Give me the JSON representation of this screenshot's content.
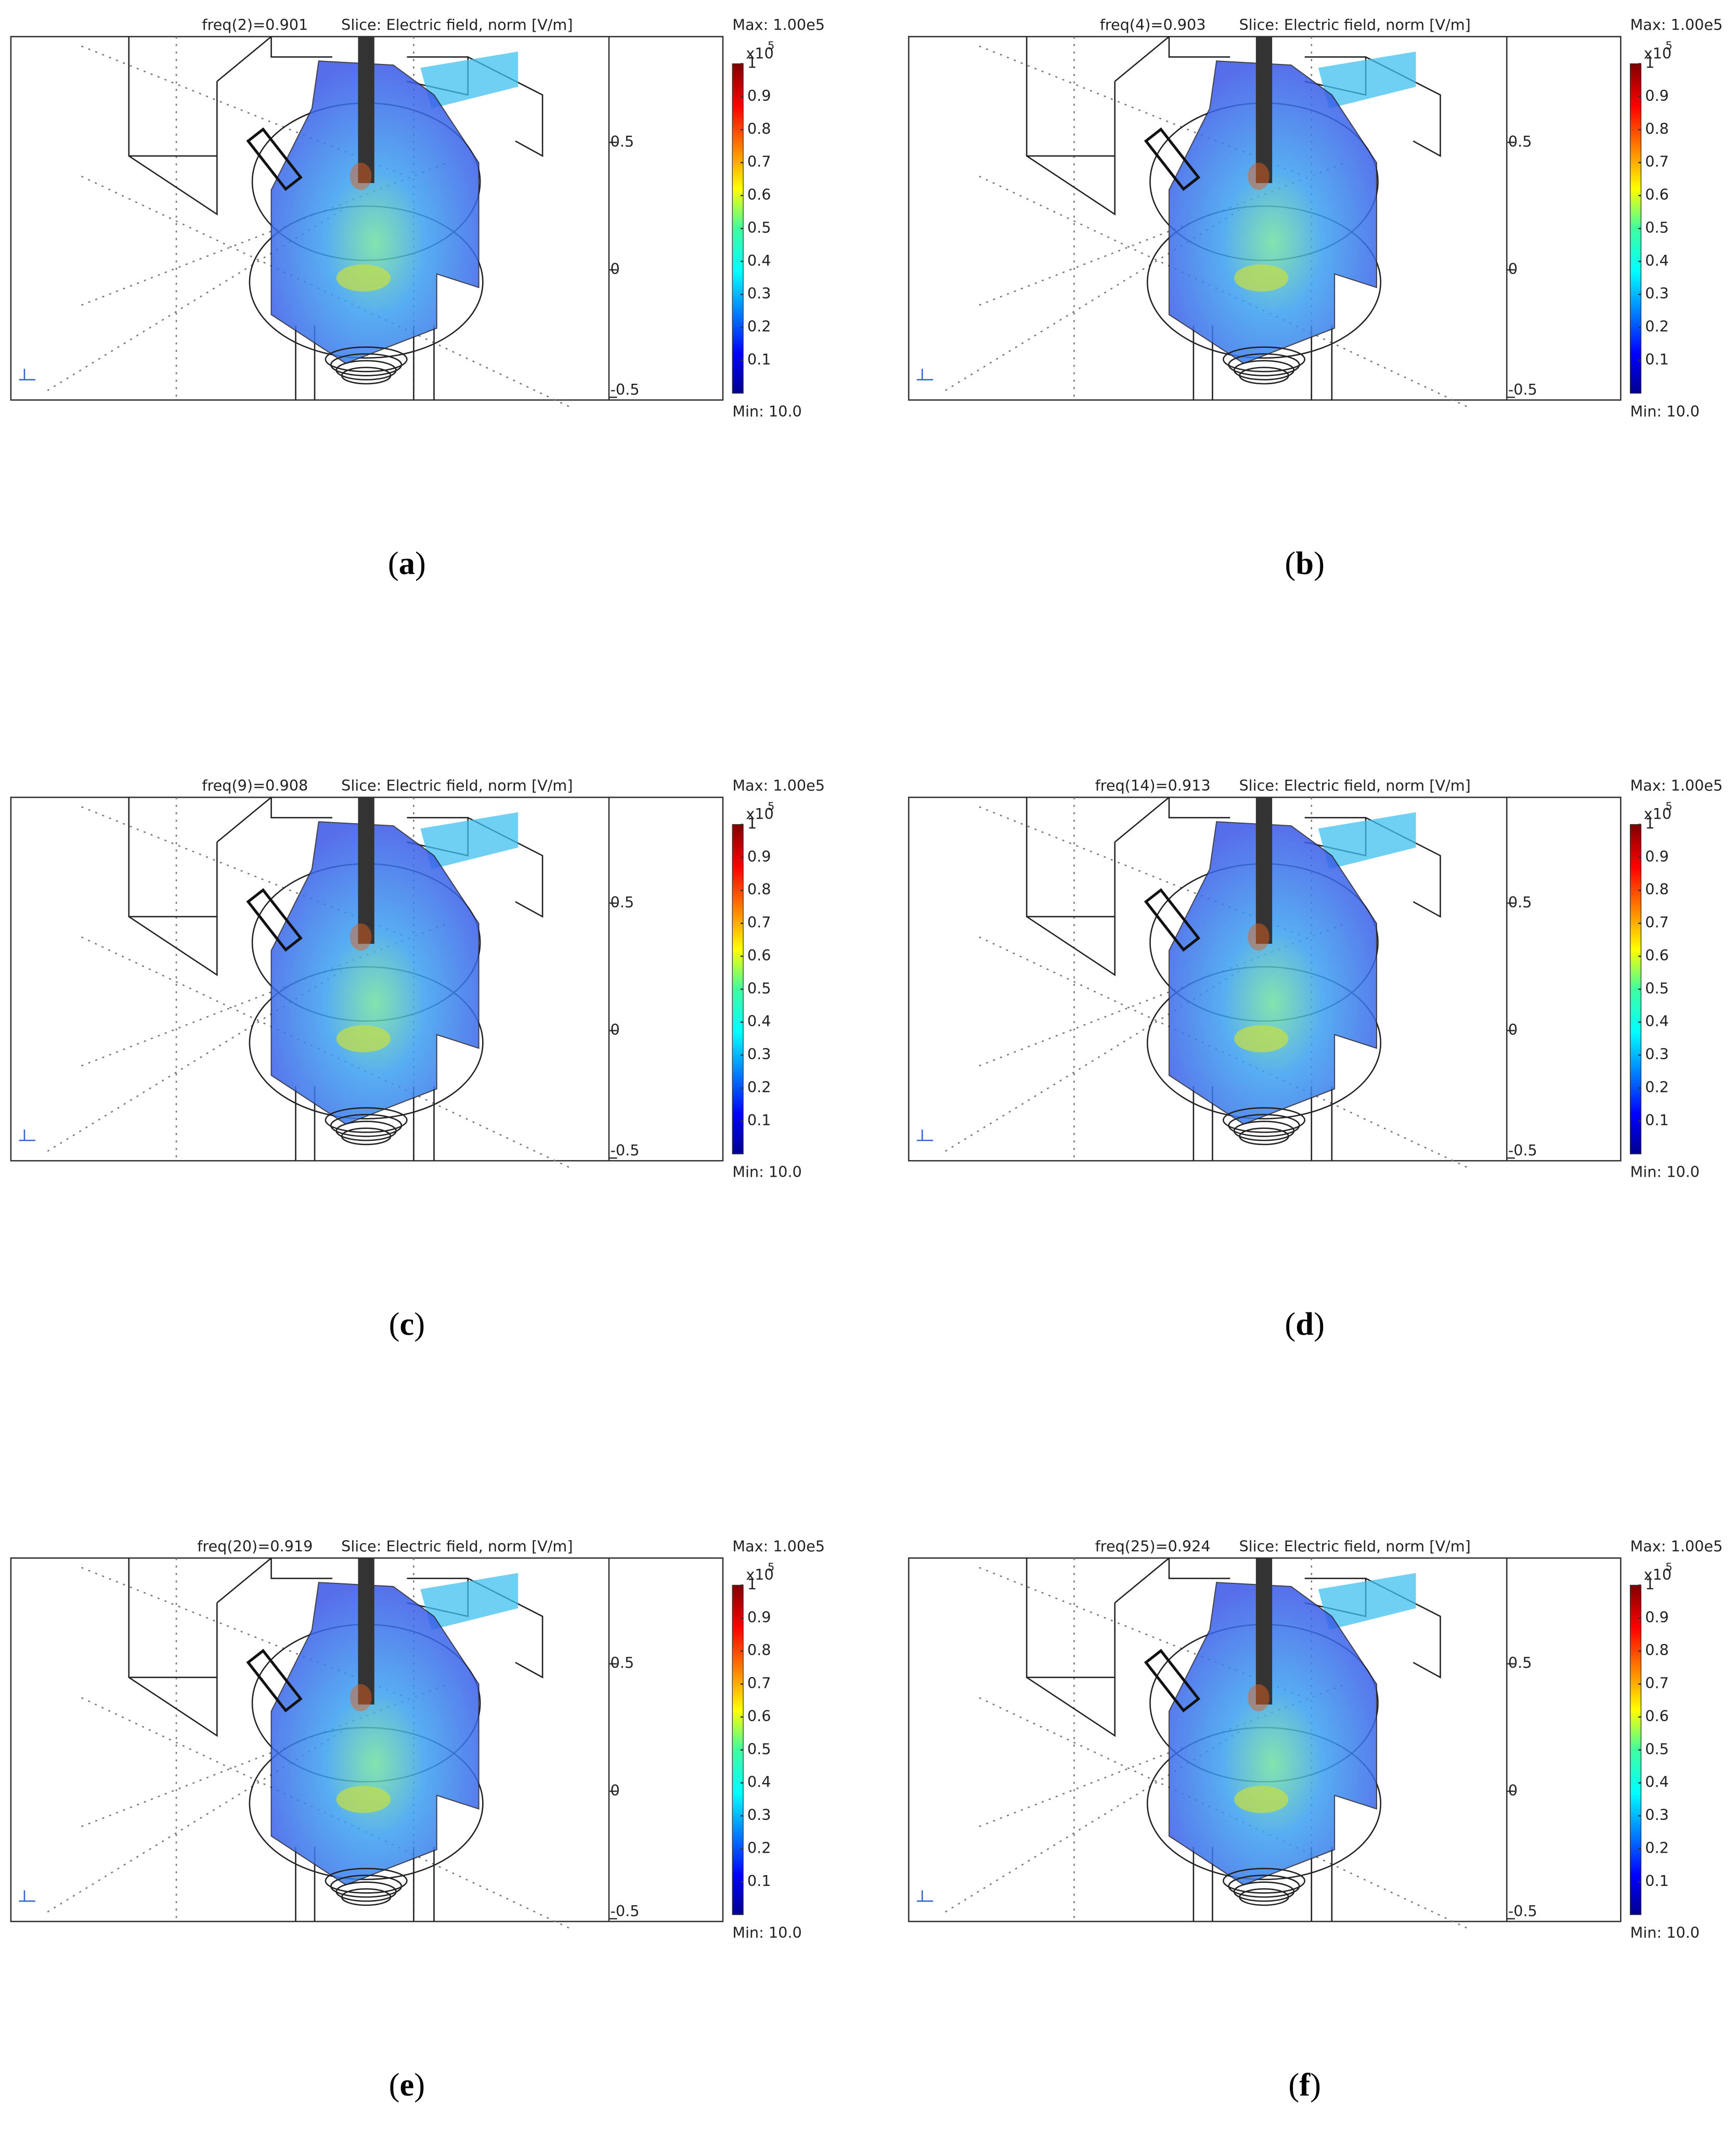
{
  "panels": [
    {
      "freq": "freq(2)=0.901",
      "title": "Slice: Electric field, norm [V/m]",
      "max": "Max: 1.00e5",
      "min": "Min: 10.0",
      "scale": "x10",
      "scale_exp": "5",
      "colorbar_ticks": [
        0.1,
        0.2,
        0.3,
        0.4,
        0.5,
        0.6,
        0.7,
        0.8,
        0.9,
        1
      ],
      "axis_ticks": [
        0.5,
        0,
        -0.5
      ],
      "caption_letter": "a"
    },
    {
      "freq": "freq(4)=0.903",
      "title": "Slice: Electric field, norm [V/m]",
      "max": "Max: 1.00e5",
      "min": "Min: 10.0",
      "scale": "x10",
      "scale_exp": "5",
      "colorbar_ticks": [
        0.1,
        0.2,
        0.3,
        0.4,
        0.5,
        0.6,
        0.7,
        0.8,
        0.9,
        1
      ],
      "axis_ticks": [
        0.5,
        0,
        -0.5
      ],
      "caption_letter": "b"
    },
    {
      "freq": "freq(9)=0.908",
      "title": "Slice: Electric field, norm [V/m]",
      "max": "Max: 1.00e5",
      "min": "Min: 10.0",
      "scale": "x10",
      "scale_exp": "5",
      "colorbar_ticks": [
        0.1,
        0.2,
        0.3,
        0.4,
        0.5,
        0.6,
        0.7,
        0.8,
        0.9,
        1
      ],
      "axis_ticks": [
        0.5,
        0,
        -0.5
      ],
      "caption_letter": "c"
    },
    {
      "freq": "freq(14)=0.913",
      "title": "Slice: Electric field, norm [V/m]",
      "max": "Max: 1.00e5",
      "min": "Min: 10.0",
      "scale": "x10",
      "scale_exp": "5",
      "colorbar_ticks": [
        0.1,
        0.2,
        0.3,
        0.4,
        0.5,
        0.6,
        0.7,
        0.8,
        0.9,
        1
      ],
      "axis_ticks": [
        0.5,
        0,
        -0.5
      ],
      "caption_letter": "d"
    },
    {
      "freq": "freq(20)=0.919",
      "title": "Slice: Electric field, norm [V/m]",
      "max": "Max: 1.00e5",
      "min": "Min: 10.0",
      "scale": "x10",
      "scale_exp": "5",
      "colorbar_ticks": [
        0.1,
        0.2,
        0.3,
        0.4,
        0.5,
        0.6,
        0.7,
        0.8,
        0.9,
        1
      ],
      "axis_ticks": [
        0.5,
        0,
        -0.5
      ],
      "caption_letter": "e"
    },
    {
      "freq": "freq(25)=0.924",
      "title": "Slice: Electric field, norm [V/m]",
      "max": "Max: 1.00e5",
      "min": "Min: 10.0",
      "scale": "x10",
      "scale_exp": "5",
      "colorbar_ticks": [
        0.1,
        0.2,
        0.3,
        0.4,
        0.5,
        0.6,
        0.7,
        0.8,
        0.9,
        1
      ],
      "axis_ticks": [
        0.5,
        0,
        -0.5
      ],
      "caption_letter": "f"
    }
  ]
}
